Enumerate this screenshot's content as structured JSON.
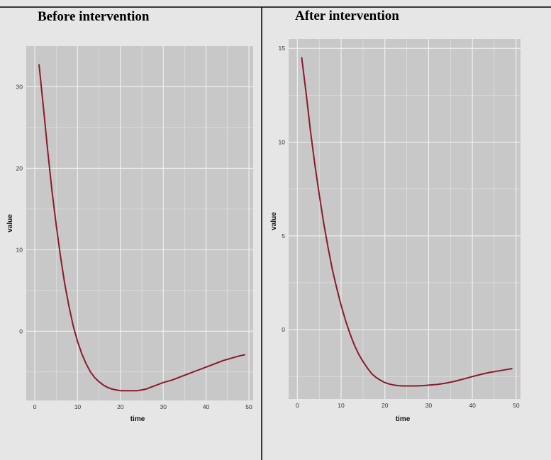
{
  "colors": {
    "figure_background": "#e6e6e6",
    "panel_background": "#c8c8c8",
    "grid": "#f2f2f2",
    "line": "#8b1a2b",
    "divider": "#000000"
  },
  "chart_data": [
    {
      "type": "line",
      "title": "Before intervention",
      "xlabel": "time",
      "ylabel": "value",
      "grid": true,
      "legend": "none",
      "xlim": [
        -2,
        51
      ],
      "ylim": [
        -8.5,
        35
      ],
      "x_ticks": [
        0,
        10,
        20,
        30,
        40,
        50
      ],
      "y_ticks": [
        0,
        10,
        20,
        30
      ],
      "series": [
        {
          "x": [
            1,
            2,
            3,
            4,
            5,
            6,
            7,
            8,
            9,
            10,
            11,
            12,
            13,
            14,
            15,
            16,
            17,
            18,
            19,
            20,
            21,
            22,
            23,
            24,
            25,
            26,
            27,
            28,
            29,
            30,
            32,
            34,
            36,
            38,
            40,
            42,
            44,
            46,
            48,
            49
          ],
          "y": [
            32.7,
            27.5,
            22.2,
            17.3,
            13.0,
            9.2,
            5.8,
            3.0,
            0.6,
            -1.3,
            -2.8,
            -4.0,
            -5.0,
            -5.7,
            -6.2,
            -6.6,
            -6.9,
            -7.1,
            -7.2,
            -7.3,
            -7.3,
            -7.3,
            -7.3,
            -7.3,
            -7.2,
            -7.1,
            -6.9,
            -6.7,
            -6.5,
            -6.3,
            -6.0,
            -5.6,
            -5.2,
            -4.8,
            -4.4,
            -4.0,
            -3.6,
            -3.3,
            -3.0,
            -2.9
          ]
        }
      ]
    },
    {
      "type": "line",
      "title": "After intervention",
      "xlabel": "time",
      "ylabel": "value",
      "grid": true,
      "legend": "none",
      "xlim": [
        -2,
        51
      ],
      "ylim": [
        -3.7,
        15.5
      ],
      "x_ticks": [
        0,
        10,
        20,
        30,
        40,
        50
      ],
      "y_ticks": [
        0,
        5,
        10,
        15
      ],
      "series": [
        {
          "x": [
            1,
            2,
            3,
            4,
            5,
            6,
            7,
            8,
            9,
            10,
            11,
            12,
            13,
            14,
            15,
            16,
            17,
            18,
            19,
            20,
            21,
            22,
            23,
            24,
            25,
            26,
            27,
            28,
            29,
            30,
            32,
            34,
            36,
            38,
            40,
            42,
            44,
            46,
            48,
            49
          ],
          "y": [
            14.5,
            12.6,
            10.6,
            8.8,
            7.2,
            5.7,
            4.4,
            3.2,
            2.2,
            1.3,
            0.5,
            -0.2,
            -0.8,
            -1.3,
            -1.7,
            -2.05,
            -2.35,
            -2.55,
            -2.7,
            -2.82,
            -2.9,
            -2.95,
            -2.98,
            -3.0,
            -3.0,
            -3.0,
            -3.0,
            -2.99,
            -2.98,
            -2.96,
            -2.92,
            -2.85,
            -2.75,
            -2.63,
            -2.5,
            -2.38,
            -2.28,
            -2.2,
            -2.12,
            -2.08
          ]
        }
      ]
    }
  ]
}
